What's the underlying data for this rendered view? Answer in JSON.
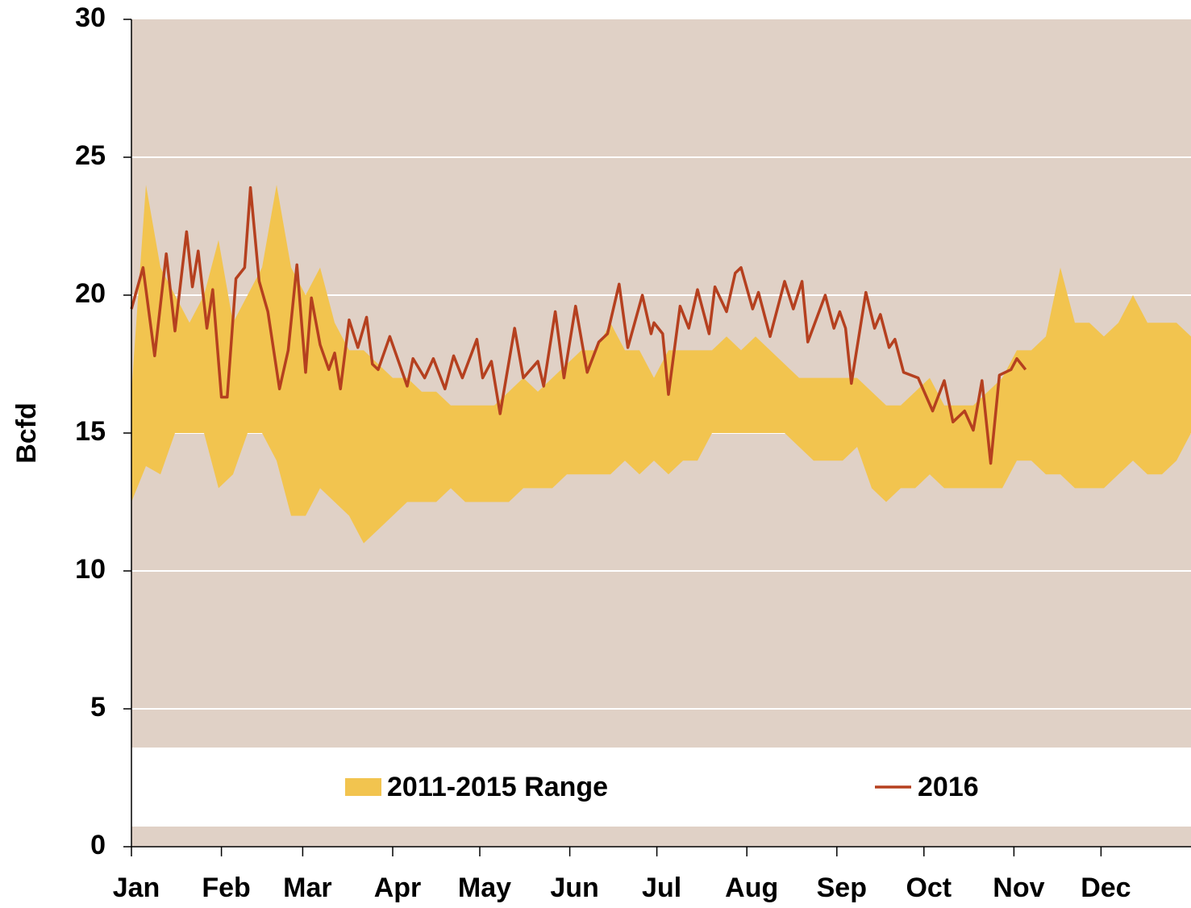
{
  "chart_data": {
    "type": "line",
    "y_label": "Bcfd",
    "xlim": [
      0,
      365
    ],
    "xticks": [
      {
        "value": 0,
        "label": "Jan"
      },
      {
        "value": 31,
        "label": "Feb"
      },
      {
        "value": 59,
        "label": "Mar"
      },
      {
        "value": 90,
        "label": "Apr"
      },
      {
        "value": 120,
        "label": "May"
      },
      {
        "value": 151,
        "label": "Jun"
      },
      {
        "value": 181,
        "label": "Jul"
      },
      {
        "value": 212,
        "label": "Aug"
      },
      {
        "value": 243,
        "label": "Sep"
      },
      {
        "value": 273,
        "label": "Oct"
      },
      {
        "value": 304,
        "label": "Nov"
      },
      {
        "value": 334,
        "label": "Dec"
      }
    ],
    "ylim": [
      0,
      30
    ],
    "yticks": [
      0,
      5,
      10,
      15,
      20,
      25,
      30
    ],
    "grid": true,
    "legend": "bottom",
    "series": [
      {
        "name": "2011-2015 Range",
        "color": "#f2c44f",
        "x": [
          0,
          5,
          10,
          15,
          20,
          25,
          30,
          35,
          40,
          45,
          50,
          55,
          60,
          65,
          70,
          75,
          80,
          85,
          90,
          95,
          100,
          105,
          110,
          115,
          120,
          125,
          130,
          135,
          140,
          145,
          150,
          155,
          160,
          165,
          170,
          175,
          180,
          185,
          190,
          195,
          200,
          205,
          210,
          215,
          220,
          225,
          230,
          235,
          240,
          245,
          250,
          255,
          260,
          265,
          270,
          275,
          280,
          285,
          290,
          295,
          300,
          305,
          310,
          315,
          320,
          325,
          330,
          335,
          340,
          345,
          350,
          355,
          360,
          365
        ],
        "low": [
          12.5,
          13.8,
          13.5,
          15,
          15,
          15,
          13,
          13.5,
          15,
          15,
          14,
          12,
          12,
          13,
          12.5,
          12,
          11,
          11.5,
          12,
          12.5,
          12.5,
          12.5,
          13,
          12.5,
          12.5,
          12.5,
          12.5,
          13,
          13,
          13,
          13.5,
          13.5,
          13.5,
          13.5,
          14,
          13.5,
          14,
          13.5,
          14,
          14,
          15,
          15,
          15,
          15,
          15,
          15,
          14.5,
          14,
          14,
          14,
          14.5,
          13,
          12.5,
          13,
          13,
          13.5,
          13,
          13,
          13,
          13,
          13,
          14,
          14,
          13.5,
          13.5,
          13,
          13,
          13,
          13.5,
          14,
          13.5,
          13.5,
          14,
          15
        ],
        "high": [
          16.5,
          24,
          21,
          20,
          19,
          20,
          22,
          19,
          20,
          21,
          24,
          21,
          20,
          21,
          19,
          18,
          18,
          17.5,
          17,
          17,
          16.5,
          16.5,
          16,
          16,
          16,
          16,
          16.5,
          17,
          16.5,
          17,
          17.5,
          18,
          18,
          19,
          18,
          18,
          17,
          18,
          18,
          18,
          18,
          18.5,
          18,
          18.5,
          18,
          17.5,
          17,
          17,
          17,
          17,
          17,
          16.5,
          16,
          16,
          16.5,
          17,
          16,
          16,
          16,
          16.5,
          17,
          18,
          18,
          18.5,
          21,
          19,
          19,
          18.5,
          19,
          20,
          19,
          19,
          19,
          18.5
        ]
      },
      {
        "name": "2016",
        "color": "#b5401f",
        "x": [
          0,
          4,
          8,
          12,
          15,
          19,
          21,
          23,
          26,
          28,
          31,
          33,
          36,
          39,
          41,
          44,
          47,
          51,
          54,
          57,
          60,
          62,
          65,
          68,
          70,
          72,
          75,
          78,
          81,
          83,
          85,
          89,
          93,
          95,
          97,
          101,
          104,
          108,
          111,
          114,
          119,
          121,
          124,
          127,
          132,
          135,
          140,
          142,
          146,
          149,
          153,
          157,
          161,
          164,
          168,
          171,
          176,
          179,
          180,
          183,
          185,
          189,
          192,
          195,
          199,
          201,
          205,
          208,
          210,
          214,
          216,
          220,
          225,
          228,
          231,
          233,
          239,
          242,
          244,
          246,
          248,
          253,
          256,
          258,
          261,
          263,
          266,
          271,
          276,
          280,
          283,
          287,
          290,
          293,
          296,
          299,
          303,
          305,
          308
        ],
        "values": [
          19.5,
          21,
          17.8,
          21.5,
          18.7,
          22.3,
          20.3,
          21.6,
          18.8,
          20.2,
          16.3,
          16.3,
          20.6,
          21,
          23.9,
          20.5,
          19.4,
          16.6,
          18,
          21.1,
          17.2,
          19.9,
          18.2,
          17.3,
          17.9,
          16.6,
          19.1,
          18.1,
          19.2,
          17.5,
          17.3,
          18.5,
          17.3,
          16.7,
          17.7,
          17,
          17.7,
          16.6,
          17.8,
          17,
          18.4,
          17,
          17.6,
          15.7,
          18.8,
          17,
          17.6,
          16.7,
          19.4,
          17,
          19.6,
          17.2,
          18.3,
          18.6,
          20.4,
          18.1,
          20,
          18.6,
          19,
          18.6,
          16.4,
          19.6,
          18.8,
          20.2,
          18.6,
          20.3,
          19.4,
          20.8,
          21,
          19.5,
          20.1,
          18.5,
          20.5,
          19.5,
          20.5,
          18.3,
          20,
          18.8,
          19.4,
          18.8,
          16.8,
          20.1,
          18.8,
          19.3,
          18.1,
          18.4,
          17.2,
          17,
          15.8,
          16.9,
          15.4,
          15.8,
          15.1,
          16.9,
          13.9,
          17.1,
          17.3,
          17.7,
          17.3
        ]
      }
    ]
  }
}
